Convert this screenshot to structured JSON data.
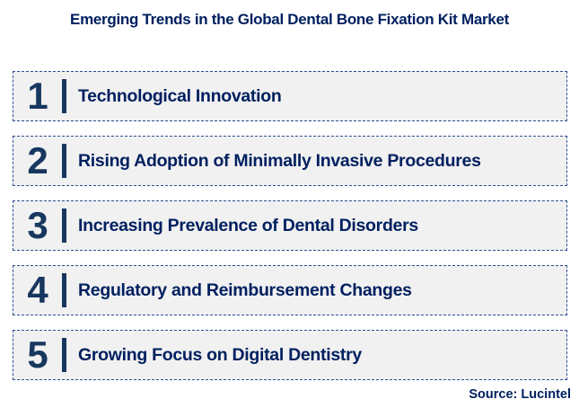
{
  "title": "Emerging Trends in the Global Dental Bone Fixation Kit Market",
  "trends": [
    {
      "number": "1",
      "label": "Technological Innovation"
    },
    {
      "number": "2",
      "label": "Rising Adoption of Minimally Invasive Procedures"
    },
    {
      "number": "3",
      "label": "Increasing Prevalence of Dental Disorders"
    },
    {
      "number": "4",
      "label": "Regulatory and Reimbursement Changes"
    },
    {
      "number": "5",
      "label": "Growing Focus on Digital Dentistry"
    }
  ],
  "source": "Source: Lucintel",
  "colors": {
    "title_text": "#002060",
    "number_text": "#17375E",
    "divider_bar": "#17375E",
    "item_text": "#002060",
    "item_border": "#2E4C93",
    "item_background": "#F1F1F1",
    "page_background": "#FFFFFF"
  }
}
